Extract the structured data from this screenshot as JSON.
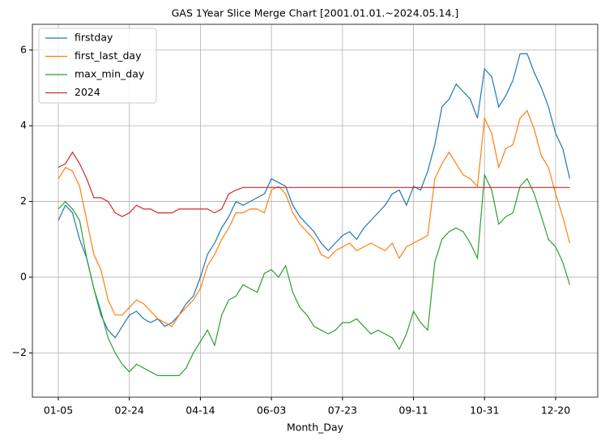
{
  "chart_data": {
    "type": "line",
    "title": "GAS 1Year Slice Merge Chart [2001.01.01.~2024.05.14.]",
    "xlabel": "Month_Day",
    "categories": [
      "01-05",
      null,
      null,
      null,
      null,
      null,
      null,
      null,
      null,
      null,
      "02-24",
      null,
      null,
      null,
      null,
      null,
      null,
      null,
      null,
      null,
      "04-14",
      null,
      null,
      null,
      null,
      null,
      null,
      null,
      null,
      null,
      "06-03",
      null,
      null,
      null,
      null,
      null,
      null,
      null,
      null,
      null,
      "07-23",
      null,
      null,
      null,
      null,
      null,
      null,
      null,
      null,
      null,
      "09-11",
      null,
      null,
      null,
      null,
      null,
      null,
      null,
      null,
      null,
      "10-31",
      null,
      null,
      null,
      null,
      null,
      null,
      null,
      null,
      null,
      "12-20",
      null,
      null
    ],
    "series": [
      {
        "name": "firstday",
        "color": "#1f77b4",
        "values": [
          1.5,
          1.9,
          1.7,
          1.0,
          0.5,
          -0.3,
          -1.0,
          -1.4,
          -1.6,
          -1.3,
          -1.0,
          -0.9,
          -1.1,
          -1.2,
          -1.1,
          -1.3,
          -1.2,
          -1.0,
          -0.7,
          -0.5,
          0.0,
          0.6,
          0.9,
          1.3,
          1.6,
          2.0,
          1.9,
          2.0,
          2.1,
          2.2,
          2.6,
          2.5,
          2.4,
          1.9,
          1.6,
          1.4,
          1.2,
          0.9,
          0.7,
          0.9,
          1.1,
          1.2,
          1.0,
          1.3,
          1.5,
          1.7,
          1.9,
          2.2,
          2.3,
          1.9,
          2.4,
          2.3,
          2.8,
          3.5,
          4.5,
          4.7,
          5.1,
          4.9,
          4.7,
          4.2,
          5.5,
          5.3,
          4.5,
          4.8,
          5.2,
          5.9,
          5.9,
          5.4,
          5.0,
          4.5,
          3.8,
          3.4,
          2.6
        ]
      },
      {
        "name": "first_last_day",
        "color": "#ff7f0e",
        "values": [
          2.6,
          2.9,
          2.8,
          2.4,
          1.5,
          0.6,
          0.2,
          -0.6,
          -1.0,
          -1.0,
          -0.8,
          -0.6,
          -0.7,
          -0.9,
          -1.1,
          -1.2,
          -1.3,
          -1.0,
          -0.8,
          -0.6,
          -0.3,
          0.3,
          0.6,
          1.0,
          1.3,
          1.7,
          1.7,
          1.8,
          1.8,
          1.7,
          2.3,
          2.4,
          2.2,
          1.7,
          1.4,
          1.2,
          1.0,
          0.6,
          0.5,
          0.7,
          0.8,
          0.9,
          0.7,
          0.8,
          0.9,
          0.8,
          0.7,
          0.9,
          0.5,
          0.8,
          0.9,
          1.0,
          1.1,
          2.6,
          3.0,
          3.3,
          3.0,
          2.7,
          2.6,
          2.4,
          4.2,
          3.8,
          2.9,
          3.4,
          3.5,
          4.2,
          4.4,
          3.9,
          3.2,
          2.9,
          2.2,
          1.6,
          0.9
        ]
      },
      {
        "name": "max_min_day",
        "color": "#2ca02c",
        "values": [
          1.8,
          2.0,
          1.8,
          1.5,
          0.5,
          -0.3,
          -0.9,
          -1.6,
          -2.0,
          -2.3,
          -2.5,
          -2.3,
          -2.4,
          -2.5,
          -2.6,
          -2.6,
          -2.6,
          -2.6,
          -2.4,
          -2.0,
          -1.7,
          -1.4,
          -1.8,
          -1.0,
          -0.6,
          -0.5,
          -0.2,
          -0.3,
          -0.4,
          0.1,
          0.2,
          0.0,
          0.3,
          -0.4,
          -0.8,
          -1.0,
          -1.3,
          -1.4,
          -1.5,
          -1.4,
          -1.2,
          -1.2,
          -1.1,
          -1.3,
          -1.5,
          -1.4,
          -1.5,
          -1.6,
          -1.9,
          -1.5,
          -0.9,
          -1.2,
          -1.4,
          0.4,
          1.0,
          1.2,
          1.3,
          1.2,
          0.9,
          0.5,
          2.7,
          2.3,
          1.4,
          1.6,
          1.7,
          2.4,
          2.6,
          2.2,
          1.6,
          1.0,
          0.8,
          0.4,
          -0.2
        ]
      },
      {
        "name": "2024",
        "color": "#d62728",
        "values": [
          2.9,
          3.0,
          3.3,
          3.0,
          2.6,
          2.1,
          2.1,
          2.0,
          1.7,
          1.6,
          1.7,
          1.9,
          1.8,
          1.8,
          1.7,
          1.7,
          1.7,
          1.8,
          1.8,
          1.8,
          1.8,
          1.8,
          1.7,
          1.8,
          2.2,
          2.3,
          2.37,
          2.37,
          2.37,
          2.37,
          2.37,
          2.37,
          2.37,
          2.37,
          2.37,
          2.37,
          2.37,
          2.37,
          2.37,
          2.37,
          2.37,
          2.37,
          2.37,
          2.37,
          2.37,
          2.37,
          2.37,
          2.37,
          2.37,
          2.37,
          2.37,
          2.37,
          2.37,
          2.37,
          2.37,
          2.37,
          2.37,
          2.37,
          2.37,
          2.37,
          2.37,
          2.37,
          2.37,
          2.37,
          2.37,
          2.37,
          2.37,
          2.37,
          2.37,
          2.37,
          2.37,
          2.37,
          2.37
        ]
      }
    ],
    "ylim": [
      -3.17,
      6.68
    ],
    "yticks": [
      {
        "value": -2,
        "label": "−2"
      },
      0,
      2,
      4,
      6
    ],
    "grid": true,
    "legend": "upper left"
  }
}
